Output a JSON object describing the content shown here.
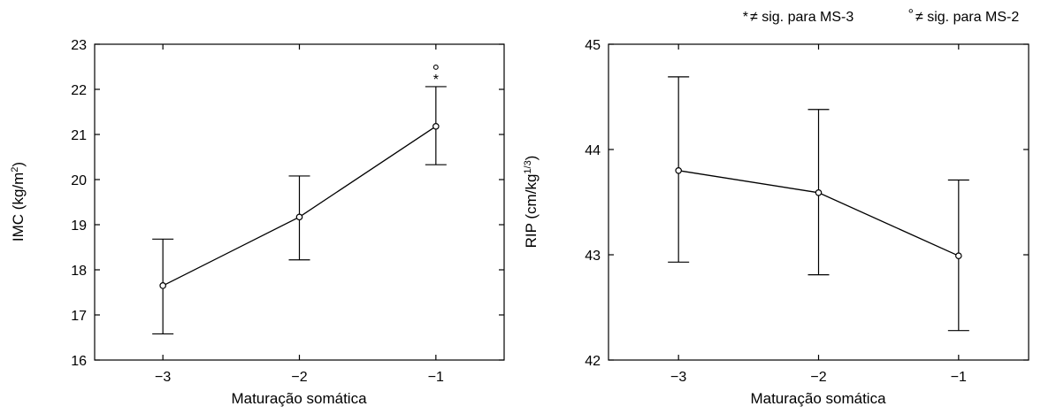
{
  "legend_note": {
    "star_symbol": "*",
    "star_text": "≠ sig. para MS-3",
    "circle_symbol": "°",
    "circle_text": "≠ sig. para MS-2"
  },
  "chart_data": [
    {
      "type": "line",
      "xlabel": "Maturação somática",
      "ylabel_main": "IMC (kg/m",
      "ylabel_sup": "2",
      "ylabel_end": ")",
      "x": [
        -3,
        -2,
        -1
      ],
      "x_tick_labels": [
        "−3",
        "−2",
        "−1"
      ],
      "xlim": [
        -3.5,
        -0.5
      ],
      "ylim": [
        16,
        23
      ],
      "y_ticks": [
        16,
        17,
        18,
        19,
        20,
        21,
        22,
        23
      ],
      "series": [
        {
          "values": [
            17.65,
            19.17,
            21.18
          ],
          "err_low": [
            16.58,
            18.22,
            20.33
          ],
          "err_high": [
            18.68,
            20.08,
            22.06
          ]
        }
      ],
      "annotations": [
        {
          "x": -1,
          "marks": [
            "*",
            "°"
          ]
        }
      ],
      "grid": false
    },
    {
      "type": "line",
      "xlabel": "Maturação somática",
      "ylabel_main": "RIP (cm/kg",
      "ylabel_sup": "1/3",
      "ylabel_end": ")",
      "x": [
        -3,
        -2,
        -1
      ],
      "x_tick_labels": [
        "−3",
        "−2",
        "−1"
      ],
      "xlim": [
        -3.5,
        -0.5
      ],
      "ylim": [
        42,
        45
      ],
      "y_ticks": [
        42,
        43,
        44,
        45
      ],
      "series": [
        {
          "values": [
            43.8,
            43.59,
            42.99
          ],
          "err_low": [
            42.93,
            42.81,
            42.28
          ],
          "err_high": [
            44.69,
            44.38,
            43.71
          ]
        }
      ],
      "annotations": [],
      "grid": false
    }
  ]
}
